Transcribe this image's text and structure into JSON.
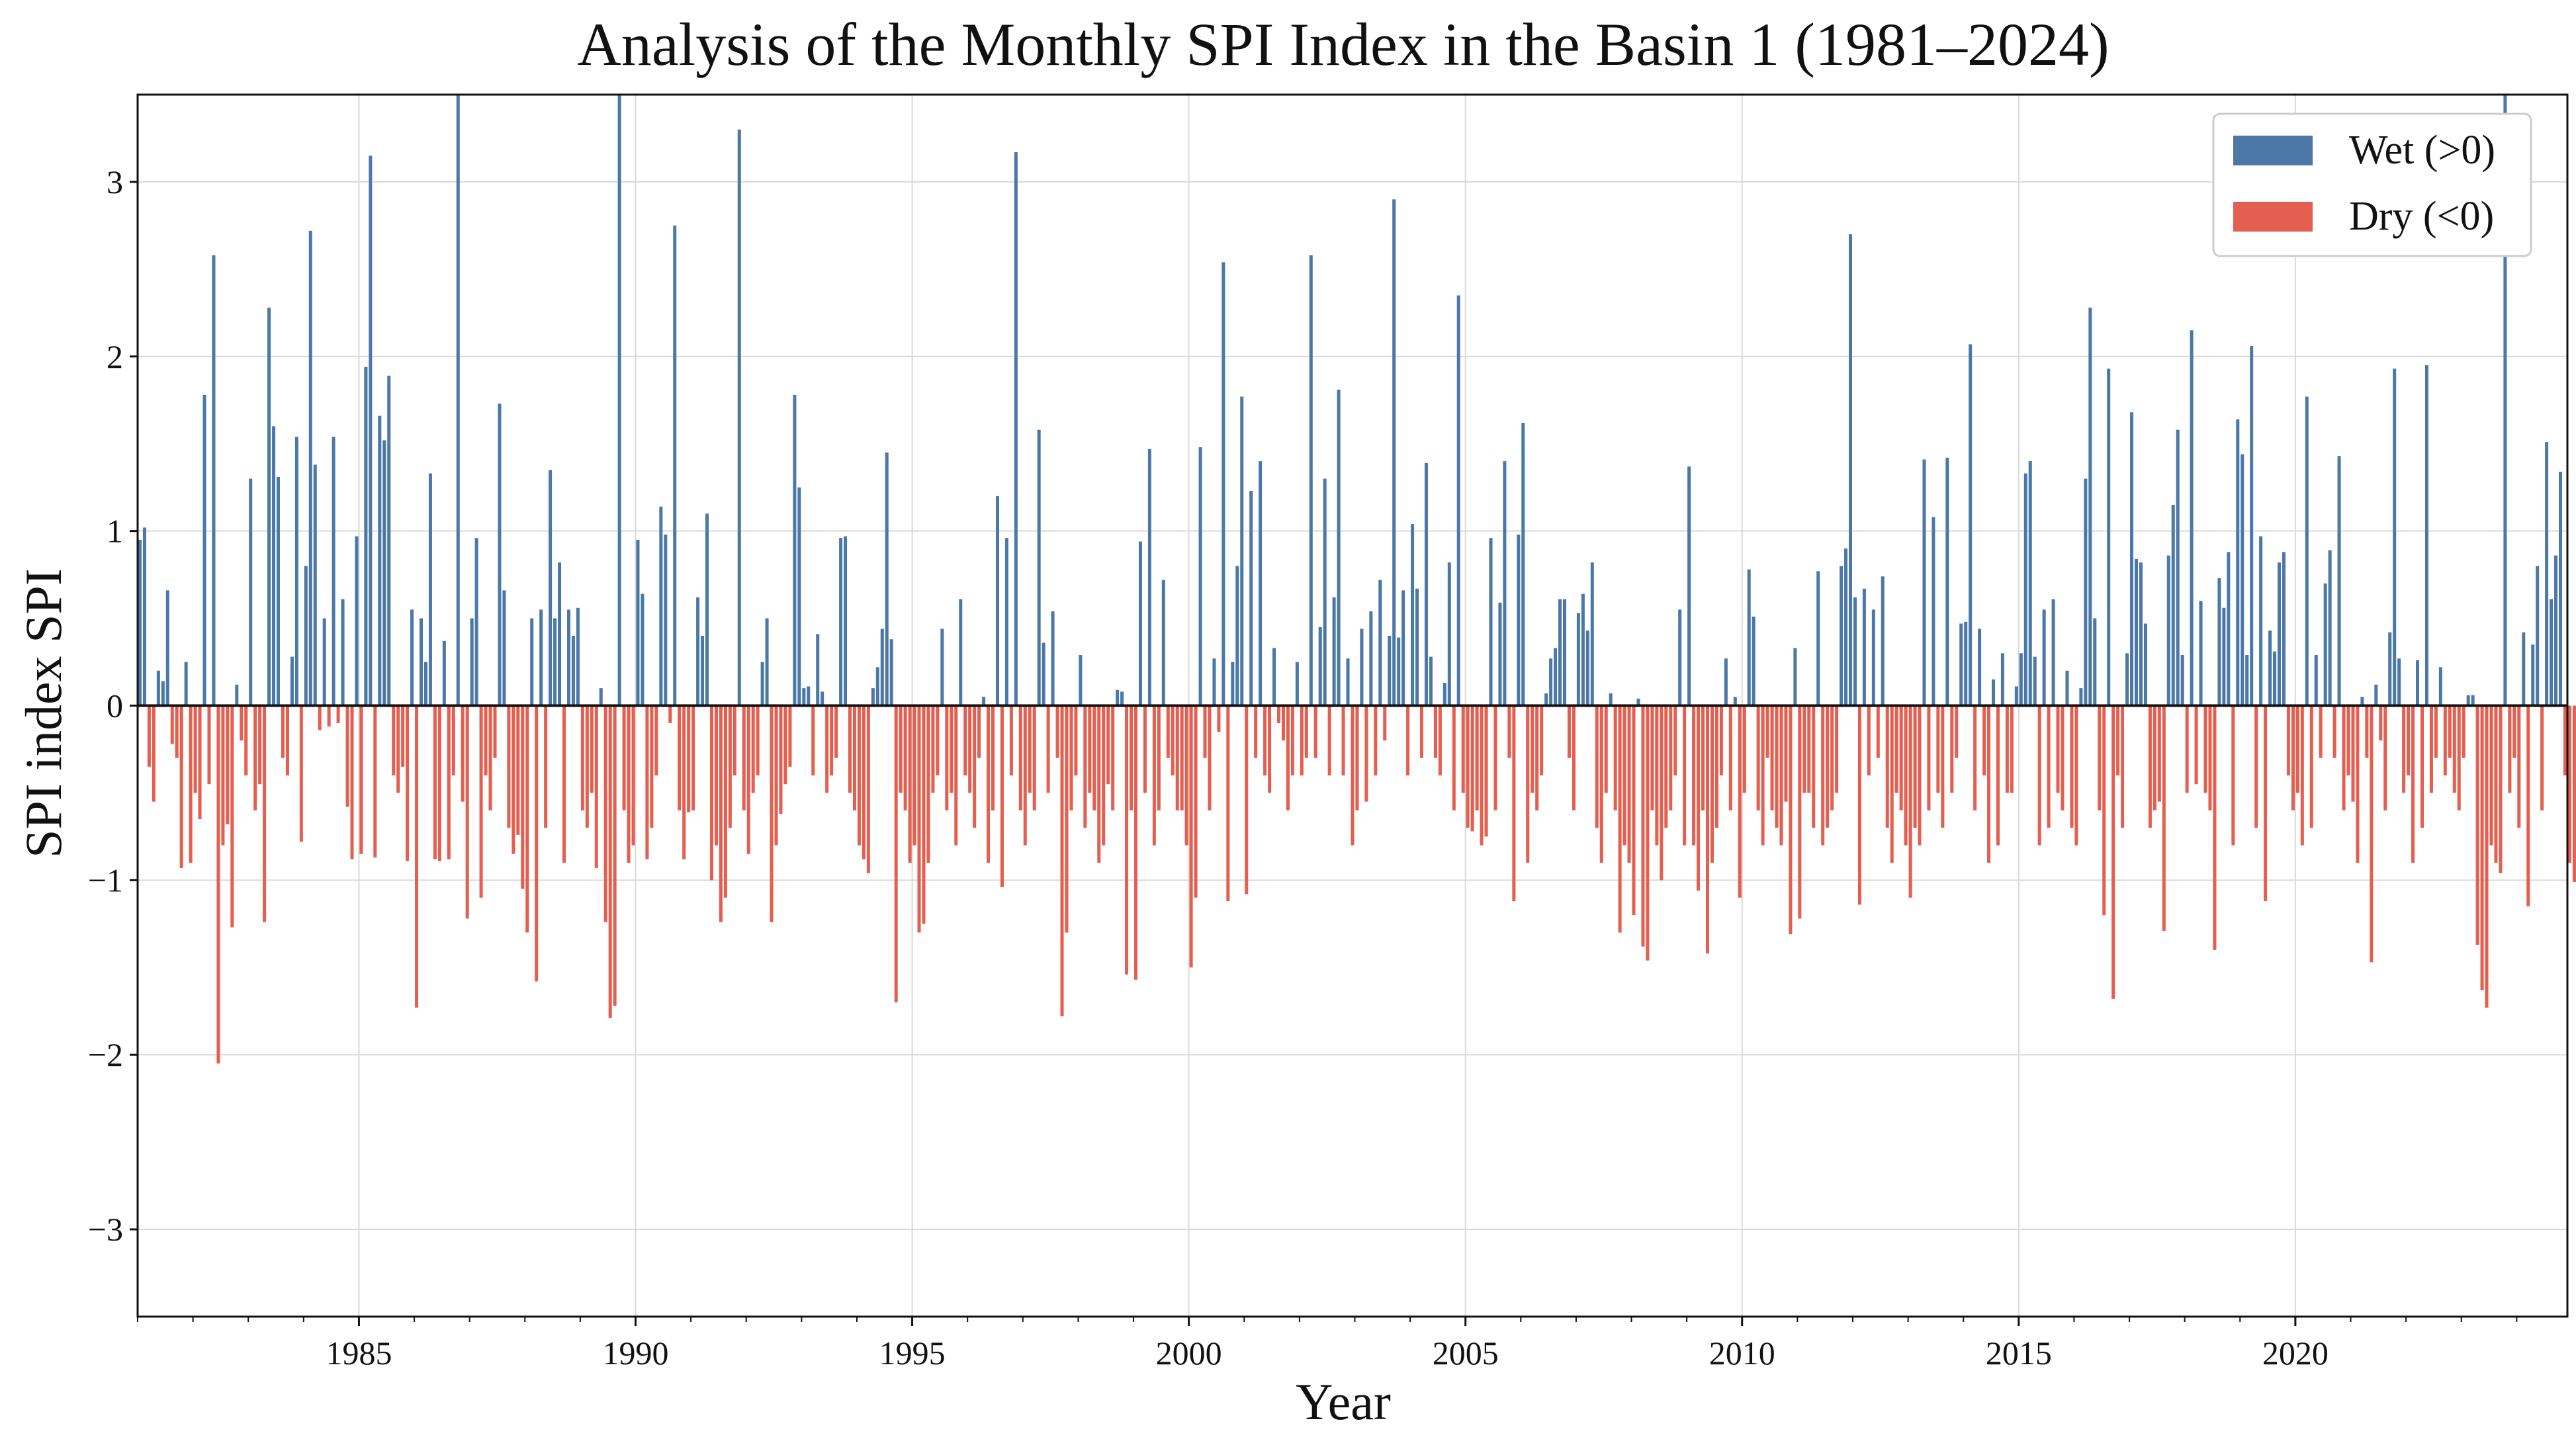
{
  "chart_data": {
    "type": "bar",
    "title": "Analysis of the Monthly SPI Index in the Basin 1 (1981–2024)",
    "xlabel": "Year",
    "ylabel": "SPI index SPI",
    "xlim": [
      1981.0,
      2024.917
    ],
    "ylim": [
      -3.5,
      3.5
    ],
    "x_ticks": [
      1985,
      1990,
      1995,
      2000,
      2005,
      2010,
      2015,
      2020
    ],
    "y_ticks": [
      -3,
      -2,
      -1,
      0,
      1,
      2,
      3
    ],
    "grid": true,
    "legend_position": "top-right",
    "series": [
      {
        "name": "Wet (>0)",
        "color": "#4c78a8"
      },
      {
        "name": "Dry (<0)",
        "color": "#e45f4f"
      }
    ],
    "start_year": 1981,
    "start_month": 1,
    "frequency": "monthly",
    "values": [
      0.95,
      1.02,
      -0.35,
      -0.55,
      0.2,
      0.14,
      0.66,
      -0.22,
      -0.3,
      -0.93,
      0.25,
      -0.9,
      -0.5,
      -0.65,
      1.78,
      -0.45,
      2.58,
      -2.05,
      -0.8,
      -0.68,
      -1.27,
      0.12,
      -0.2,
      -0.4,
      1.3,
      -0.6,
      -0.45,
      -1.24,
      2.28,
      1.6,
      1.31,
      -0.3,
      -0.4,
      0.28,
      1.54,
      -0.78,
      0.8,
      2.72,
      1.38,
      -0.14,
      0.5,
      -0.12,
      1.54,
      -0.1,
      0.61,
      -0.58,
      -0.88,
      0.97,
      -0.85,
      1.94,
      3.15,
      -0.87,
      1.66,
      1.52,
      1.89,
      -0.4,
      -0.5,
      -0.35,
      -0.89,
      0.55,
      -1.73,
      0.5,
      0.25,
      1.33,
      -0.88,
      -0.89,
      0.37,
      -0.88,
      -0.4,
      3.5,
      -0.55,
      -1.22,
      0.5,
      0.96,
      -1.1,
      -0.4,
      -0.6,
      -0.3,
      1.73,
      0.66,
      -0.7,
      -0.85,
      -0.74,
      -1.05,
      -1.3,
      0.5,
      -1.58,
      0.55,
      -0.7,
      1.35,
      0.5,
      0.82,
      -0.9,
      0.55,
      0.4,
      0.56,
      -0.6,
      -0.7,
      -0.5,
      -0.93,
      0.1,
      -1.24,
      -1.79,
      -1.72,
      3.5,
      -0.6,
      -0.9,
      -0.8,
      0.95,
      0.64,
      -0.88,
      -0.7,
      -0.4,
      1.14,
      0.98,
      -0.1,
      2.75,
      -0.6,
      -0.88,
      -0.61,
      -0.6,
      0.62,
      0.4,
      1.1,
      -1.0,
      -0.8,
      -1.24,
      -1.1,
      -0.7,
      -0.4,
      3.3,
      -0.6,
      -0.85,
      -0.5,
      -0.4,
      0.25,
      0.5,
      -1.24,
      -0.8,
      -0.62,
      -0.45,
      -0.35,
      1.78,
      1.25,
      0.1,
      0.11,
      -0.4,
      0.41,
      0.08,
      -0.5,
      -0.4,
      -0.3,
      0.96,
      0.97,
      -0.5,
      -0.6,
      -0.8,
      -0.88,
      -0.96,
      0.1,
      0.22,
      0.44,
      1.45,
      0.38,
      -1.7,
      -0.5,
      -0.6,
      -0.9,
      -0.8,
      -1.3,
      -1.25,
      -0.9,
      -0.5,
      -0.4,
      0.44,
      -0.6,
      -0.5,
      -0.8,
      0.61,
      -0.4,
      -0.5,
      -0.7,
      -0.3,
      0.05,
      -0.9,
      -0.6,
      1.2,
      -1.04,
      0.96,
      -0.4,
      3.17,
      -0.6,
      -0.8,
      -0.5,
      -0.6,
      1.58,
      0.36,
      -0.5,
      0.54,
      -0.3,
      -1.78,
      -1.3,
      -0.6,
      -0.4,
      0.29,
      -0.7,
      -0.5,
      -0.6,
      -0.9,
      -0.8,
      -0.45,
      -0.6,
      0.09,
      0.08,
      -1.54,
      -0.6,
      -1.57,
      0.94,
      -0.5,
      1.47,
      -0.8,
      -0.6,
      0.72,
      -0.3,
      -0.4,
      -0.6,
      -0.6,
      -0.8,
      -1.5,
      -1.1,
      1.48,
      -0.3,
      -0.6,
      0.27,
      -0.15,
      2.54,
      -1.12,
      0.25,
      0.8,
      1.77,
      -1.08,
      1.23,
      -0.3,
      1.4,
      -0.4,
      -0.5,
      0.33,
      -0.1,
      -0.2,
      -0.6,
      -0.4,
      0.25,
      -0.4,
      -0.3,
      2.58,
      -0.3,
      0.45,
      1.3,
      -0.4,
      0.62,
      1.81,
      -0.4,
      0.27,
      -0.8,
      -0.6,
      0.44,
      -0.55,
      0.54,
      -0.4,
      0.72,
      -0.2,
      0.4,
      2.9,
      0.39,
      0.66,
      -0.4,
      1.04,
      0.67,
      -0.3,
      1.39,
      0.28,
      -0.3,
      -0.4,
      0.13,
      0.82,
      -0.6,
      2.35,
      -0.5,
      -0.7,
      -0.72,
      -0.6,
      -0.8,
      -0.75,
      0.96,
      -0.6,
      0.59,
      1.4,
      -0.3,
      -1.12,
      0.98,
      1.62,
      -0.9,
      -0.5,
      -0.6,
      -0.4,
      0.07,
      0.27,
      0.33,
      0.61,
      0.61,
      -0.3,
      -0.6,
      0.53,
      0.64,
      0.43,
      0.82,
      -0.7,
      -0.9,
      -0.5,
      0.07,
      -0.6,
      -1.3,
      -0.8,
      -0.9,
      -1.2,
      0.04,
      -1.38,
      -1.46,
      -0.6,
      -0.8,
      -1.0,
      -0.7,
      -0.6,
      -0.4,
      0.55,
      -0.8,
      1.37,
      -0.8,
      -1.06,
      -0.6,
      -1.42,
      -0.9,
      -0.7,
      -0.4,
      0.27,
      -0.6,
      0.05,
      -1.1,
      -0.5,
      0.78,
      0.51,
      -0.6,
      -0.8,
      -0.3,
      -0.6,
      -0.7,
      -0.8,
      -0.55,
      -1.31,
      0.33,
      -1.22,
      -0.5,
      -0.5,
      -0.7,
      0.77,
      -0.8,
      -0.7,
      -0.6,
      -0.5,
      0.8,
      0.9,
      2.7,
      0.62,
      -1.14,
      0.67,
      -0.4,
      0.55,
      -0.3,
      0.74,
      -0.7,
      -0.9,
      -0.5,
      -0.6,
      -0.8,
      -1.1,
      -0.7,
      -0.8,
      1.41,
      -0.6,
      1.08,
      -0.5,
      -0.7,
      1.42,
      -0.5,
      -0.3,
      0.47,
      0.48,
      2.07,
      -0.6,
      0.44,
      -0.4,
      -0.9,
      0.15,
      -0.8,
      0.3,
      -0.5,
      -0.5,
      0.11,
      0.3,
      1.33,
      1.4,
      0.28,
      -0.8,
      0.55,
      -0.7,
      0.61,
      -0.5,
      -0.6,
      0.2,
      -0.7,
      -0.8,
      0.1,
      1.3,
      2.28,
      0.5,
      -0.6,
      -1.2,
      1.93,
      -1.68,
      -0.4,
      -0.7,
      0.3,
      1.68,
      0.84,
      0.82,
      0.47,
      -0.7,
      -0.6,
      -0.55,
      -1.29,
      0.86,
      1.15,
      1.58,
      0.29,
      -0.5,
      2.15,
      -0.45,
      0.6,
      -0.5,
      -0.6,
      -1.4,
      0.73,
      0.56,
      0.88,
      -0.8,
      1.64,
      1.44,
      0.29,
      2.06,
      -0.7,
      0.97,
      -1.12,
      0.43,
      0.31,
      0.82,
      0.88,
      -0.4,
      -0.6,
      -0.5,
      -0.8,
      1.77,
      -0.7,
      0.29,
      -0.3,
      0.7,
      0.89,
      -0.3,
      1.43,
      -0.6,
      -0.4,
      -0.55,
      -0.9,
      0.05,
      -0.3,
      -1.47,
      0.12,
      -0.2,
      -0.6,
      0.42,
      1.93,
      0.27,
      -0.5,
      -0.4,
      -0.9,
      0.26,
      -0.7,
      1.95,
      -0.5,
      -0.3,
      0.22,
      -0.4,
      -0.3,
      -0.5,
      -0.6,
      -0.3,
      0.06,
      0.06,
      -1.37,
      -1.63,
      -1.73,
      -0.8,
      -0.9,
      -0.96,
      3.5,
      -0.5,
      -0.3,
      -0.7,
      0.42,
      -1.15,
      0.35,
      0.8,
      -0.6,
      1.51,
      0.61,
      0.86,
      1.34,
      -0.4,
      -0.9,
      -1.01,
      -0.6,
      0.9,
      -0.8
    ]
  }
}
